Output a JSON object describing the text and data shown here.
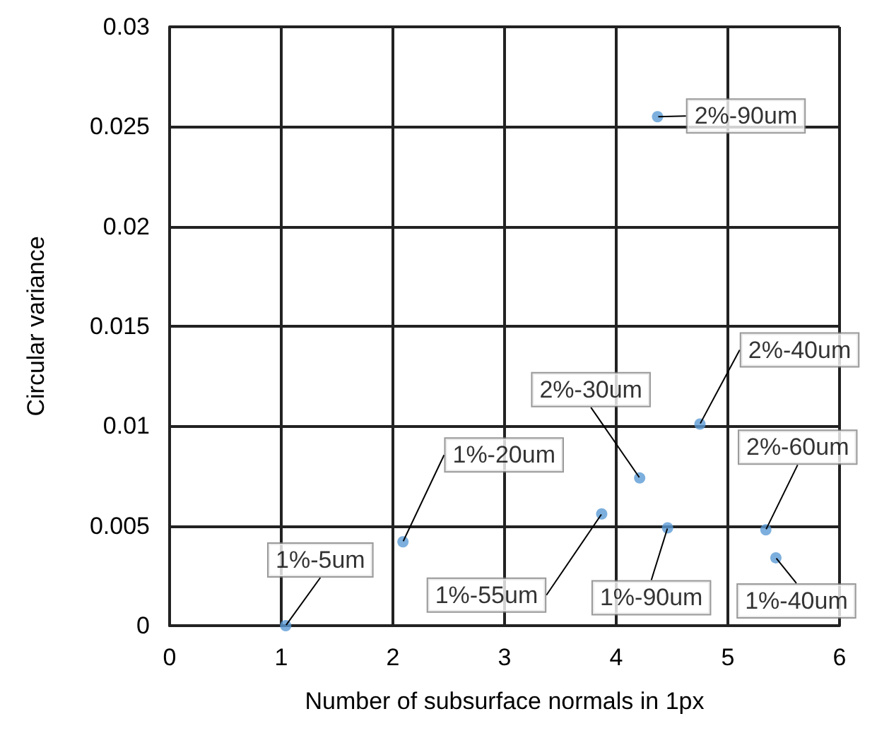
{
  "chart_data": {
    "type": "scatter",
    "xlabel": "Number of subsurface normals in 1px",
    "ylabel": "Circular variance",
    "x": [
      1.04,
      2.09,
      3.87,
      4.21,
      4.46,
      4.75,
      5.34,
      5.43,
      4.37
    ],
    "series": [
      {
        "color": "#5b9bd5",
        "values": [
          0,
          0.0042,
          0.0056,
          0.0074,
          0.0049,
          0.0101,
          0.0048,
          0.0034,
          0.0255
        ]
      }
    ],
    "annotations": [
      {
        "text": "1%-5um",
        "x": 1.04,
        "y": 0
      },
      {
        "text": "1%-20um",
        "x": 2.09,
        "y": 0.0042
      },
      {
        "text": "1%-55um",
        "x": 3.87,
        "y": 0.0056
      },
      {
        "text": "2%-30um",
        "x": 4.21,
        "y": 0.0074
      },
      {
        "text": "1%-90um",
        "x": 4.46,
        "y": 0.0049
      },
      {
        "text": "2%-40um",
        "x": 4.75,
        "y": 0.0101
      },
      {
        "text": "2%-60um",
        "x": 5.34,
        "y": 0.0048
      },
      {
        "text": "1%-40um",
        "x": 5.43,
        "y": 0.0034
      },
      {
        "text": "2%-90um",
        "x": 4.37,
        "y": 0.0255
      }
    ],
    "xlim": [
      0,
      6
    ],
    "xticks": [
      0,
      1,
      2,
      3,
      4,
      5,
      6
    ],
    "ylim": [
      0,
      0.03
    ],
    "yticks": [
      0,
      0.005,
      0.01,
      0.015,
      0.02,
      0.025,
      0.03
    ],
    "grid": true,
    "marker": "circle"
  }
}
